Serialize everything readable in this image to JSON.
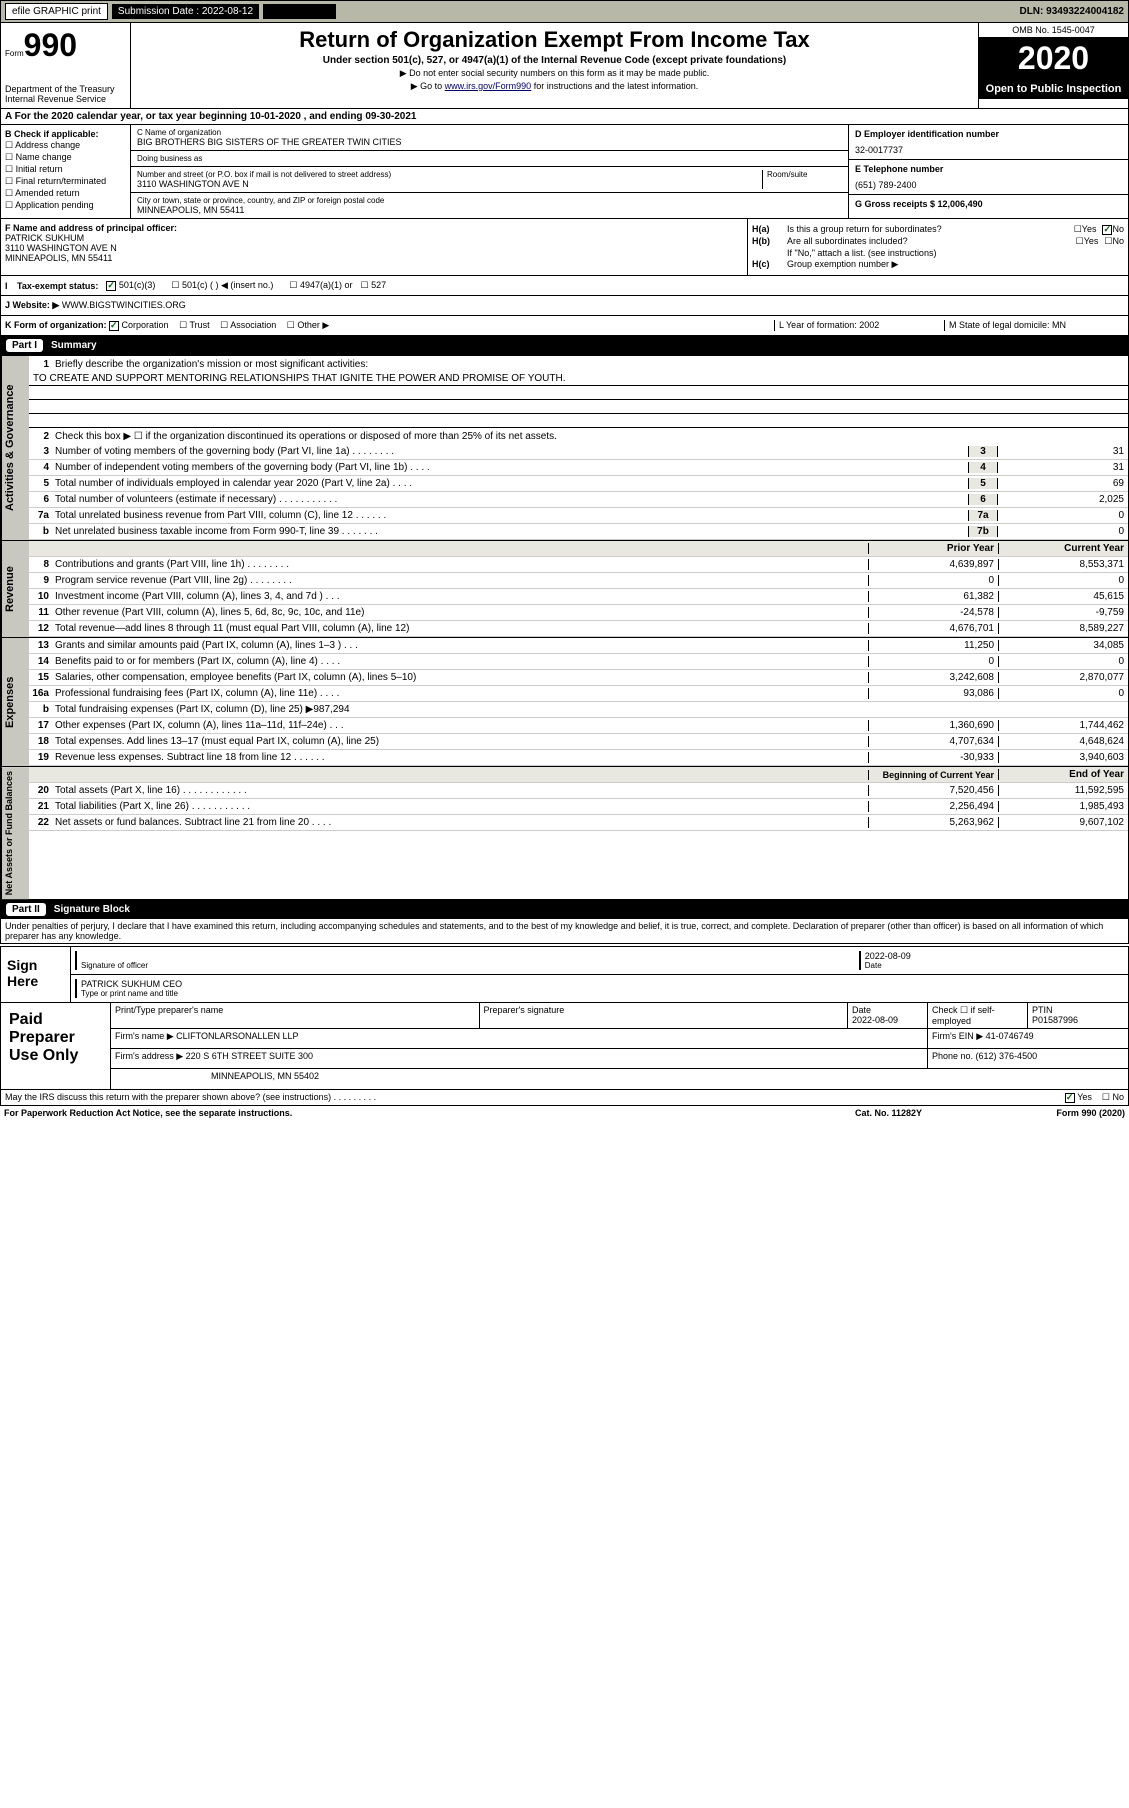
{
  "topbar": {
    "efile": "efile GRAPHIC print",
    "submission_label": "Submission Date : 2022-08-12",
    "dln": "DLN: 93493224004182"
  },
  "header": {
    "form_prefix": "Form",
    "form_number": "990",
    "dept": "Department of the Treasury Internal Revenue Service",
    "title": "Return of Organization Exempt From Income Tax",
    "subtitle": "Under section 501(c), 527, or 4947(a)(1) of the Internal Revenue Code (except private foundations)",
    "note1": "▶ Do not enter social security numbers on this form as it may be made public.",
    "note2_pre": "▶ Go to ",
    "note2_link": "www.irs.gov/Form990",
    "note2_post": " for instructions and the latest information.",
    "omb": "OMB No. 1545-0047",
    "year": "2020",
    "inspect": "Open to Public Inspection"
  },
  "line_a": "A For the 2020 calendar year, or tax year beginning 10-01-2020   , and ending 09-30-2021",
  "entity": {
    "check_label": "B Check if applicable:",
    "checks": [
      "Address change",
      "Name change",
      "Initial return",
      "Final return/terminated",
      "Amended return",
      "Application pending"
    ],
    "name_label": "C Name of organization",
    "name": "BIG BROTHERS BIG SISTERS OF THE GREATER TWIN CITIES",
    "dba_label": "Doing business as",
    "street_label": "Number and street (or P.O. box if mail is not delivered to street address)",
    "room_label": "Room/suite",
    "street": "3110 WASHINGTON AVE N",
    "city_label": "City or town, state or province, country, and ZIP or foreign postal code",
    "city": "MINNEAPOLIS, MN  55411",
    "f_label": "F Name and address of principal officer:",
    "f_name": "PATRICK SUKHUM",
    "f_street": "3110 WASHINGTON AVE N",
    "f_city": "MINNEAPOLIS, MN  55411",
    "ein_label": "D Employer identification number",
    "ein": "32-0017737",
    "phone_label": "E Telephone number",
    "phone": "(651) 789-2400",
    "gross_label": "G Gross receipts $ 12,006,490"
  },
  "h": {
    "ha_label": "H(a)",
    "ha_text": "Is this a group return for subordinates?",
    "hb_label": "H(b)",
    "hb_text": "Are all subordinates included?",
    "hb_note": "If \"No,\" attach a list. (see instructions)",
    "hc_label": "H(c)",
    "hc_text": "Group exemption number ▶",
    "yes": "Yes",
    "no": "No"
  },
  "status": {
    "i_label": "I",
    "label": "Tax-exempt status:",
    "opts": [
      "501(c)(3)",
      "501(c) (  ) ◀ (insert no.)",
      "4947(a)(1) or",
      "527"
    ]
  },
  "website": {
    "j_label": "J",
    "label": "Website: ▶",
    "val": "WWW.BIGSTWINCITIES.ORG"
  },
  "kform": {
    "k_label": "K Form of organization:",
    "opts": [
      "Corporation",
      "Trust",
      "Association",
      "Other ▶"
    ],
    "l_label": "L Year of formation: 2002",
    "m_label": "M State of legal domicile: MN"
  },
  "part1": {
    "label": "Part I",
    "title": "Summary"
  },
  "governance": {
    "side": "Activities & Governance",
    "l1_label": "1",
    "l1_text": "Briefly describe the organization's mission or most significant activities:",
    "l1_val": "TO CREATE AND SUPPORT MENTORING RELATIONSHIPS THAT IGNITE THE POWER AND PROMISE OF YOUTH.",
    "l2_label": "2",
    "l2_text": "Check this box ▶ ☐ if the organization discontinued its operations or disposed of more than 25% of its net assets.",
    "rows": [
      {
        "n": "3",
        "d": "Number of voting members of the governing body (Part VI, line 1a)  .  .  .  .  .  .  .  .",
        "c": "3",
        "v": "31"
      },
      {
        "n": "4",
        "d": "Number of independent voting members of the governing body (Part VI, line 1b)  .  .  .  .",
        "c": "4",
        "v": "31"
      },
      {
        "n": "5",
        "d": "Total number of individuals employed in calendar year 2020 (Part V, line 2a)  .  .  .  .",
        "c": "5",
        "v": "69"
      },
      {
        "n": "6",
        "d": "Total number of volunteers (estimate if necessary)  .  .  .  .  .  .  .  .  .  .  .",
        "c": "6",
        "v": "2,025"
      },
      {
        "n": "7a",
        "d": "Total unrelated business revenue from Part VIII, column (C), line 12  .  .  .  .  .  .",
        "c": "7a",
        "v": "0"
      },
      {
        "n": "b",
        "d": "Net unrelated business taxable income from Form 990-T, line 39  .  .  .  .  .  .  .",
        "c": "7b",
        "v": "0"
      }
    ]
  },
  "revenue": {
    "side": "Revenue",
    "header_prior": "Prior Year",
    "header_current": "Current Year",
    "rows": [
      {
        "n": "8",
        "d": "Contributions and grants (Part VIII, line 1h)  .  .  .  .  .  .  .  .",
        "p": "4,639,897",
        "c": "8,553,371"
      },
      {
        "n": "9",
        "d": "Program service revenue (Part VIII, line 2g)  .  .  .  .  .  .  .  .",
        "p": "0",
        "c": "0"
      },
      {
        "n": "10",
        "d": "Investment income (Part VIII, column (A), lines 3, 4, and 7d )  .  .  .",
        "p": "61,382",
        "c": "45,615"
      },
      {
        "n": "11",
        "d": "Other revenue (Part VIII, column (A), lines 5, 6d, 8c, 9c, 10c, and 11e)",
        "p": "-24,578",
        "c": "-9,759"
      },
      {
        "n": "12",
        "d": "Total revenue—add lines 8 through 11 (must equal Part VIII, column (A), line 12)",
        "p": "4,676,701",
        "c": "8,589,227"
      }
    ]
  },
  "expenses": {
    "side": "Expenses",
    "rows": [
      {
        "n": "13",
        "d": "Grants and similar amounts paid (Part IX, column (A), lines 1–3 )  .  .  .",
        "p": "11,250",
        "c": "34,085"
      },
      {
        "n": "14",
        "d": "Benefits paid to or for members (Part IX, column (A), line 4)  .  .  .  .",
        "p": "0",
        "c": "0"
      },
      {
        "n": "15",
        "d": "Salaries, other compensation, employee benefits (Part IX, column (A), lines 5–10)",
        "p": "3,242,608",
        "c": "2,870,077"
      },
      {
        "n": "16a",
        "d": "Professional fundraising fees (Part IX, column (A), line 11e)  .  .  .  .",
        "p": "93,086",
        "c": "0"
      },
      {
        "n": "b",
        "d": "Total fundraising expenses (Part IX, column (D), line 25) ▶987,294",
        "p": "",
        "c": ""
      },
      {
        "n": "17",
        "d": "Other expenses (Part IX, column (A), lines 11a–11d, 11f–24e)  .  .  .",
        "p": "1,360,690",
        "c": "1,744,462"
      },
      {
        "n": "18",
        "d": "Total expenses. Add lines 13–17 (must equal Part IX, column (A), line 25)",
        "p": "4,707,634",
        "c": "4,648,624"
      },
      {
        "n": "19",
        "d": "Revenue less expenses. Subtract line 18 from line 12  .  .  .  .  .  .",
        "p": "-30,933",
        "c": "3,940,603"
      }
    ]
  },
  "netassets": {
    "side": "Net Assets or Fund Balances",
    "header_begin": "Beginning of Current Year",
    "header_end": "End of Year",
    "rows": [
      {
        "n": "20",
        "d": "Total assets (Part X, line 16)  .  .  .  .  .  .  .  .  .  .  .  .",
        "p": "7,520,456",
        "c": "11,592,595"
      },
      {
        "n": "21",
        "d": "Total liabilities (Part X, line 26)  .  .  .  .  .  .  .  .  .  .  .",
        "p": "2,256,494",
        "c": "1,985,493"
      },
      {
        "n": "22",
        "d": "Net assets or fund balances. Subtract line 21 from line 20  .  .  .  .",
        "p": "5,263,962",
        "c": "9,607,102"
      }
    ]
  },
  "part2": {
    "label": "Part II",
    "title": "Signature Block"
  },
  "penalties": "Under penalties of perjury, I declare that I have examined this return, including accompanying schedules and statements, and to the best of my knowledge and belief, it is true, correct, and complete. Declaration of preparer (other than officer) is based on all information of which preparer has any knowledge.",
  "sign": {
    "label": "Sign Here",
    "sig_label": "Signature of officer",
    "date_label": "Date",
    "date": "2022-08-09",
    "name": "PATRICK SUKHUM CEO",
    "name_label": "Type or print name and title"
  },
  "paid": {
    "label": "Paid Preparer Use Only",
    "h1": "Print/Type preparer's name",
    "h2": "Preparer's signature",
    "h3_label": "Date",
    "h3": "2022-08-09",
    "h4_label": "Check ☐ if self-employed",
    "h5_label": "PTIN",
    "h5": "P01587996",
    "firm_label": "Firm's name    ▶",
    "firm": "CLIFTONLARSONALLEN LLP",
    "ein_label": "Firm's EIN ▶ 41-0746749",
    "addr_label": "Firm's address ▶",
    "addr1": "220 S 6TH STREET SUITE 300",
    "addr2": "MINNEAPOLIS, MN  55402",
    "phone_label": "Phone no. (612) 376-4500"
  },
  "discuss": {
    "text": "May the IRS discuss this return with the preparer shown above? (see instructions)  .  .  .  .  .  .  .  .  .",
    "yes": "Yes",
    "no": "No"
  },
  "footer": {
    "pra": "For Paperwork Reduction Act Notice, see the separate instructions.",
    "cat": "Cat. No. 11282Y",
    "form": "Form 990 (2020)"
  }
}
